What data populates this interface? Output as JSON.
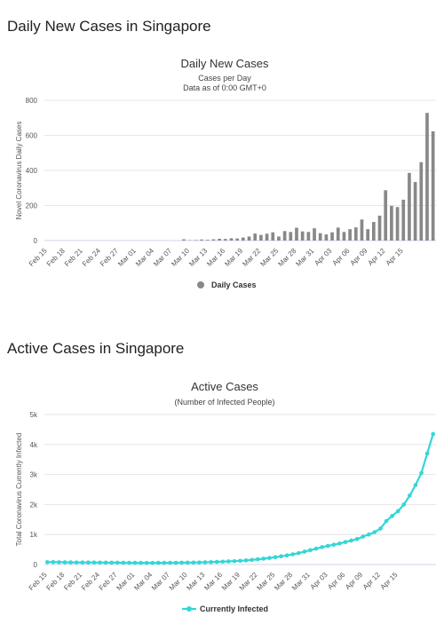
{
  "headings": {
    "daily": "Daily New Cases in Singapore",
    "active": "Active Cases in Singapore"
  },
  "chart_data": [
    {
      "type": "bar",
      "title": "Daily New Cases",
      "subtitle": [
        "Cases per Day",
        "Data as of 0:00 GMT+0"
      ],
      "ylabel": "Novel Coronavirus Daily Cases",
      "xlabel": "",
      "ylim": [
        0,
        800
      ],
      "yticks": [
        0,
        200,
        400,
        600,
        800
      ],
      "ytick_labels": [
        "0",
        "200",
        "400",
        "600",
        "800"
      ],
      "xtick_labels": [
        "Feb 15",
        "Feb 18",
        "Feb 21",
        "Feb 24",
        "Feb 27",
        "Mar 01",
        "Mar 04",
        "Mar 07",
        "Mar 10",
        "Mar 13",
        "Mar 16",
        "Mar 19",
        "Mar 22",
        "Mar 25",
        "Mar 28",
        "Mar 31",
        "Apr 03",
        "Apr 06",
        "Apr 09",
        "Apr 12",
        "Apr 15"
      ],
      "grid": true,
      "legend": "bottom-center",
      "color": "#888888",
      "series": [
        {
          "name": "Daily Cases",
          "values": [
            0,
            0,
            0,
            0,
            0,
            0,
            0,
            0,
            0,
            0,
            0,
            0,
            0,
            0,
            0,
            0,
            0,
            0,
            0,
            0,
            0,
            0,
            0,
            7,
            2,
            3,
            6,
            4,
            7,
            10,
            9,
            13,
            12,
            17,
            23,
            40,
            32,
            39,
            47,
            23,
            54,
            49,
            73,
            52,
            49,
            70,
            42,
            35,
            47,
            74,
            49,
            65,
            75,
            120,
            65,
            106,
            142,
            287,
            198,
            191,
            233,
            386,
            334,
            447,
            728,
            623
          ]
        }
      ]
    },
    {
      "type": "line",
      "title": "Active Cases",
      "subtitle": [
        "(Number of Infected People)"
      ],
      "ylabel": "Total Coronavirus Currently Infected",
      "xlabel": "",
      "ylim": [
        0,
        5000
      ],
      "yticks": [
        0,
        1000,
        2000,
        3000,
        4000,
        5000
      ],
      "ytick_labels": [
        "0",
        "1k",
        "2k",
        "3k",
        "4k",
        "5k"
      ],
      "xtick_labels": [
        "Feb 15",
        "Feb 18",
        "Feb 21",
        "Feb 24",
        "Feb 27",
        "Mar 01",
        "Mar 04",
        "Mar 07",
        "Mar 10",
        "Mar 13",
        "Mar 16",
        "Mar 19",
        "Mar 22",
        "Mar 25",
        "Mar 28",
        "Mar 31",
        "Apr 03",
        "Apr 06",
        "Apr 09",
        "Apr 12",
        "Apr 15"
      ],
      "grid": true,
      "legend": "bottom-center",
      "color": "#33d6d6",
      "series": [
        {
          "name": "Currently Infected",
          "values": [
            80,
            82,
            78,
            75,
            72,
            70,
            69,
            68,
            67,
            66,
            64,
            63,
            62,
            60,
            58,
            57,
            56,
            55,
            55,
            56,
            57,
            58,
            59,
            62,
            64,
            66,
            70,
            75,
            80,
            88,
            96,
            104,
            112,
            125,
            138,
            155,
            175,
            195,
            220,
            245,
            275,
            305,
            340,
            380,
            430,
            480,
            530,
            580,
            620,
            660,
            700,
            750,
            800,
            850,
            930,
            1000,
            1080,
            1200,
            1450,
            1620,
            1780,
            2000,
            2300,
            2650,
            3050,
            3700,
            4350
          ]
        }
      ]
    }
  ]
}
